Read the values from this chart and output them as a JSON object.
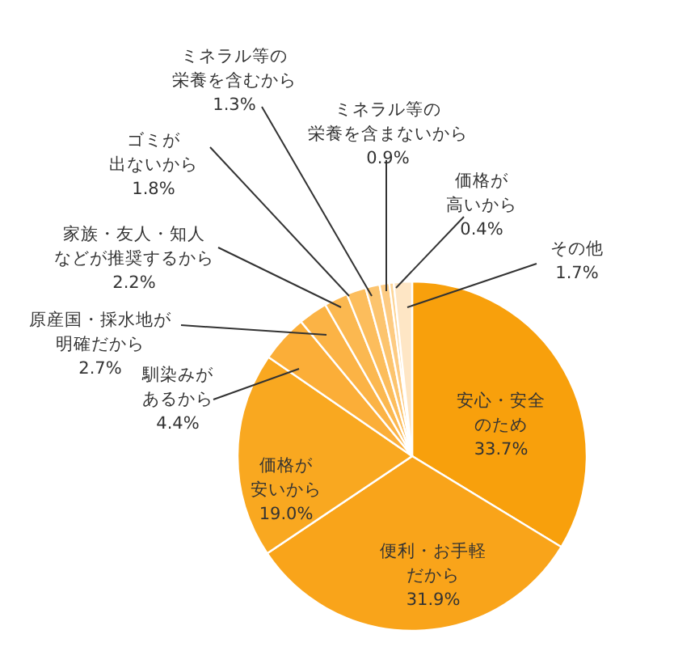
{
  "chart_data": {
    "type": "pie",
    "categories": [
      "安心・安全のため",
      "便利・お手軽だから",
      "価格が安いから",
      "馴染みがあるから",
      "原産国・採水地が明確だから",
      "家族・友人・知人などが推奨するから",
      "ゴミが出ないから",
      "ミネラル等の栄養を含むから",
      "ミネラル等の栄養を含まないから",
      "価格が高いから",
      "その他"
    ],
    "values": [
      33.7,
      31.9,
      19.0,
      4.4,
      2.7,
      2.2,
      1.8,
      1.3,
      0.9,
      0.4,
      1.7
    ],
    "value_labels": [
      "33.7%",
      "31.9%",
      "19.0%",
      "4.4%",
      "2.7%",
      "2.2%",
      "1.8%",
      "1.3%",
      "0.9%",
      "0.4%",
      "1.7%"
    ],
    "colors": [
      "#f8a00c",
      "#f9a41a",
      "#f9a820",
      "#fbae38",
      "#fbb345",
      "#fbb850",
      "#fcbd5c",
      "#fcc46e",
      "#fdcb82",
      "#fdd597",
      "#fee6c5"
    ]
  }
}
